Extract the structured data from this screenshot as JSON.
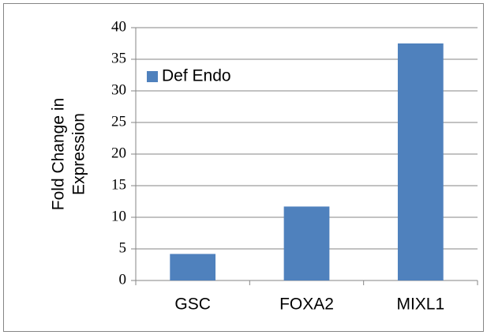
{
  "chart_data": {
    "type": "bar",
    "ylabel": [
      "Fold Change in",
      "Expression"
    ],
    "categories": [
      "GSC",
      "FOXA2",
      "MIXL1"
    ],
    "series": [
      {
        "name": "Def Endo",
        "color": "#4f81bd",
        "values": [
          4.2,
          11.7,
          37.5
        ]
      }
    ],
    "ylim": [
      0,
      40
    ],
    "yticks": [
      0,
      5,
      10,
      15,
      20,
      25,
      30,
      35,
      40
    ],
    "grid": true,
    "legend": "top-left"
  }
}
